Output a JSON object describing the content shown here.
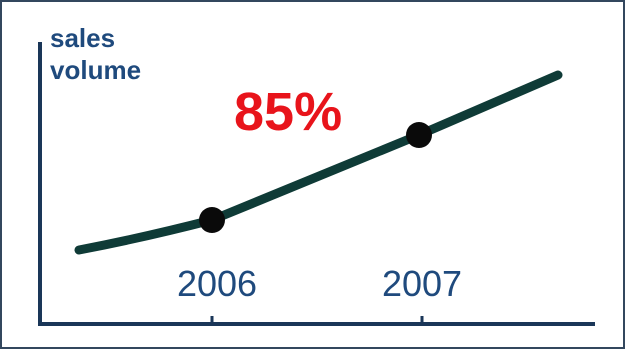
{
  "chart_data": {
    "type": "line",
    "ylabel_line1": "sales",
    "ylabel_line2": "volume",
    "x": [
      "2006",
      "2007"
    ],
    "series": [
      {
        "values": [
          1,
          1.85
        ]
      }
    ],
    "annotation": "85%",
    "grid": false,
    "colors": {
      "line": "#0f3b37",
      "axis": "#1a3658",
      "label": "#1f4a7d",
      "annotation": "#e8141b",
      "marker": "#0a0a0a"
    }
  }
}
